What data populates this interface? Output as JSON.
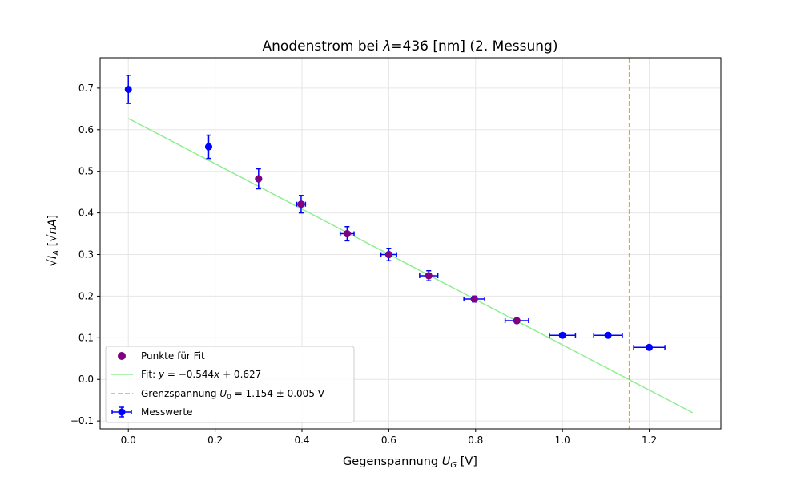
{
  "chart_data": {
    "type": "scatter",
    "title": "Anodenstrom bei λ=436 [nm] (2. Messung)",
    "xlabel": "Gegenspannung U_G [V]",
    "ylabel": "√I_A [√nA]",
    "xlim": [
      -0.065,
      1.365
    ],
    "ylim": [
      -0.119,
      0.773
    ],
    "x_ticks": [
      0.0,
      0.2,
      0.4,
      0.6,
      0.8,
      1.0,
      1.2
    ],
    "x_tick_labels": [
      "0.0",
      "0.2",
      "0.4",
      "0.6",
      "0.8",
      "1.0",
      "1.2"
    ],
    "y_ticks": [
      -0.1,
      0.0,
      0.1,
      0.2,
      0.3,
      0.4,
      0.5,
      0.6,
      0.7
    ],
    "y_tick_labels": [
      "−0.1",
      "0.0",
      "0.1",
      "0.2",
      "0.3",
      "0.4",
      "0.5",
      "0.6",
      "0.7"
    ],
    "grid": true,
    "legend_position": "lower-left",
    "colors": {
      "measured": "#0000ff",
      "fit_points": "#800080",
      "fit_line": "#90ee90",
      "limit_line": "#ffa500"
    },
    "series": [
      {
        "name": "Messwerte",
        "kind": "errorbar",
        "points": [
          {
            "x": 0.0,
            "y": 0.697,
            "xerr": 0.0,
            "yerr": 0.034
          },
          {
            "x": 0.185,
            "y": 0.559,
            "xerr": 0.0,
            "yerr": 0.028
          },
          {
            "x": 0.3,
            "y": 0.482,
            "xerr": 0.0,
            "yerr": 0.024
          },
          {
            "x": 0.398,
            "y": 0.421,
            "xerr": 0.01,
            "yerr": 0.021
          },
          {
            "x": 0.504,
            "y": 0.35,
            "xerr": 0.016,
            "yerr": 0.017
          },
          {
            "x": 0.6,
            "y": 0.3,
            "xerr": 0.018,
            "yerr": 0.015
          },
          {
            "x": 0.692,
            "y": 0.249,
            "xerr": 0.021,
            "yerr": 0.012
          },
          {
            "x": 0.797,
            "y": 0.193,
            "xerr": 0.024,
            "yerr": 0.007
          },
          {
            "x": 0.895,
            "y": 0.141,
            "xerr": 0.027,
            "yerr": 0.005
          },
          {
            "x": 1.0,
            "y": 0.106,
            "xerr": 0.03,
            "yerr": 0.005
          },
          {
            "x": 1.105,
            "y": 0.106,
            "xerr": 0.033,
            "yerr": 0.005
          },
          {
            "x": 1.2,
            "y": 0.077,
            "xerr": 0.036,
            "yerr": 0.004
          }
        ]
      },
      {
        "name": "Punkte für Fit",
        "kind": "scatter",
        "points": [
          {
            "x": 0.3,
            "y": 0.482
          },
          {
            "x": 0.398,
            "y": 0.421
          },
          {
            "x": 0.504,
            "y": 0.35
          },
          {
            "x": 0.6,
            "y": 0.3
          },
          {
            "x": 0.692,
            "y": 0.249
          },
          {
            "x": 0.797,
            "y": 0.193
          },
          {
            "x": 0.895,
            "y": 0.141
          }
        ]
      },
      {
        "name": "Fit: y = −0.544x + 0.627",
        "kind": "line",
        "slope": -0.544,
        "intercept": 0.627,
        "x_range": [
          0.0,
          1.3
        ]
      },
      {
        "name": "Grenzspannung U₀ = 1.154 ± 0.005 V",
        "kind": "vline",
        "x": 1.154
      }
    ],
    "legend": [
      {
        "key": "fit_points",
        "label": "Punkte für Fit"
      },
      {
        "key": "fit_line",
        "label": "Fit: y = −0.544x + 0.627"
      },
      {
        "key": "limit_line",
        "label": "Grenzspannung U₀ = 1.154 ± 0.005 V"
      },
      {
        "key": "measured",
        "label": "Messwerte"
      }
    ]
  }
}
